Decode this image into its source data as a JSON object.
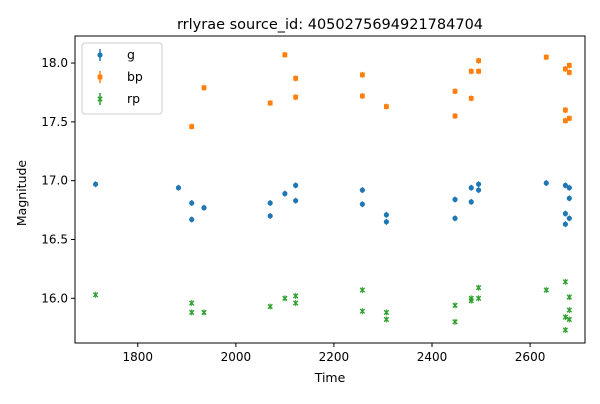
{
  "chart_data": {
    "type": "scatter",
    "title": "rrlyrae source_id: 4050275694921784704",
    "xlabel": "Time",
    "ylabel": "Magnitude",
    "xlim": [
      1672,
      2712
    ],
    "ylim": [
      15.62,
      18.23
    ],
    "xticks": [
      1800,
      2000,
      2200,
      2400,
      2600
    ],
    "yticks": [
      16.0,
      16.5,
      17.0,
      17.5,
      18.0
    ],
    "xtick_labels": [
      "1800",
      "2000",
      "2200",
      "2400",
      "2600"
    ],
    "ytick_labels": [
      "16.0",
      "16.5",
      "17.0",
      "17.5",
      "18.0"
    ],
    "grid": false,
    "legend_position": "top-left",
    "series": [
      {
        "name": "g",
        "color": "#1f77b4",
        "marker": "circle",
        "points": [
          [
            1714,
            16.97
          ],
          [
            1883,
            16.94
          ],
          [
            1910,
            16.81
          ],
          [
            1910,
            16.67
          ],
          [
            1935,
            16.77
          ],
          [
            2070,
            16.81
          ],
          [
            2070,
            16.7
          ],
          [
            2100,
            16.89
          ],
          [
            2122,
            16.96
          ],
          [
            2122,
            16.83
          ],
          [
            2258,
            16.92
          ],
          [
            2258,
            16.8
          ],
          [
            2307,
            16.71
          ],
          [
            2307,
            16.65
          ],
          [
            2447,
            16.84
          ],
          [
            2447,
            16.68
          ],
          [
            2480,
            16.94
          ],
          [
            2480,
            16.82
          ],
          [
            2495,
            16.97
          ],
          [
            2495,
            16.92
          ],
          [
            2633,
            16.98
          ],
          [
            2672,
            16.96
          ],
          [
            2672,
            16.72
          ],
          [
            2672,
            16.63
          ],
          [
            2680,
            16.94
          ],
          [
            2680,
            16.85
          ],
          [
            2680,
            16.68
          ]
        ]
      },
      {
        "name": "bp",
        "color": "#ff7f0e",
        "marker": "square",
        "points": [
          [
            1910,
            17.46
          ],
          [
            1935,
            17.79
          ],
          [
            2070,
            17.66
          ],
          [
            2100,
            18.07
          ],
          [
            2122,
            17.87
          ],
          [
            2122,
            17.71
          ],
          [
            2258,
            17.9
          ],
          [
            2258,
            17.72
          ],
          [
            2307,
            17.63
          ],
          [
            2447,
            17.76
          ],
          [
            2447,
            17.55
          ],
          [
            2480,
            17.93
          ],
          [
            2480,
            17.7
          ],
          [
            2495,
            18.02
          ],
          [
            2495,
            17.93
          ],
          [
            2633,
            18.05
          ],
          [
            2672,
            17.95
          ],
          [
            2672,
            17.6
          ],
          [
            2672,
            17.51
          ],
          [
            2680,
            17.98
          ],
          [
            2680,
            17.92
          ],
          [
            2680,
            17.53
          ]
        ]
      },
      {
        "name": "rp",
        "color": "#2ca02c",
        "marker": "x",
        "points": [
          [
            1714,
            16.03
          ],
          [
            1910,
            15.96
          ],
          [
            1910,
            15.88
          ],
          [
            1935,
            15.88
          ],
          [
            2070,
            15.93
          ],
          [
            2100,
            16.0
          ],
          [
            2122,
            16.02
          ],
          [
            2122,
            15.96
          ],
          [
            2258,
            16.07
          ],
          [
            2258,
            15.89
          ],
          [
            2307,
            15.88
          ],
          [
            2307,
            15.82
          ],
          [
            2447,
            15.94
          ],
          [
            2447,
            15.8
          ],
          [
            2480,
            16.0
          ],
          [
            2480,
            15.98
          ],
          [
            2495,
            16.09
          ],
          [
            2495,
            16.0
          ],
          [
            2633,
            16.07
          ],
          [
            2672,
            16.14
          ],
          [
            2672,
            15.84
          ],
          [
            2672,
            15.73
          ],
          [
            2680,
            16.01
          ],
          [
            2680,
            15.9
          ],
          [
            2680,
            15.82
          ]
        ]
      }
    ]
  }
}
